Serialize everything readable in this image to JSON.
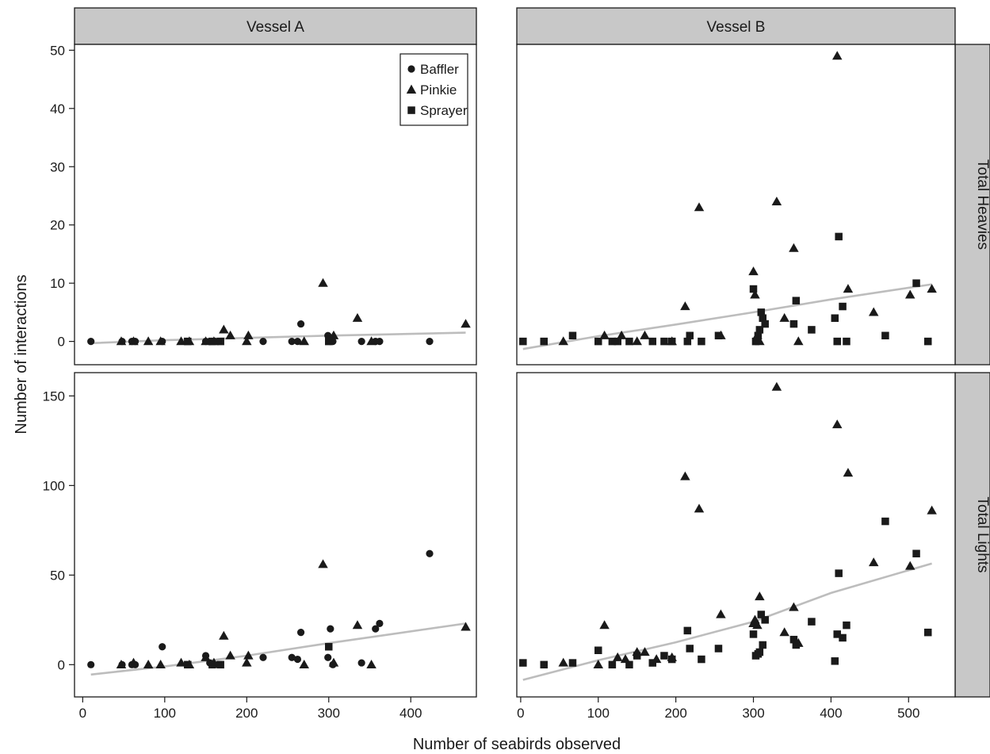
{
  "chart_data": {
    "type": "scatter",
    "xlabel": "Number of seabirds observed",
    "ylabel": "Number of interactions",
    "columns": [
      "Vessel A",
      "Vessel B"
    ],
    "rows": [
      "Total Heavies",
      "Total Lights"
    ],
    "legend": {
      "placement": "top-right of first panel",
      "entries": [
        {
          "name": "Baffler",
          "marker": "circle"
        },
        {
          "name": "Pinkie",
          "marker": "triangle"
        },
        {
          "name": "Sprayer",
          "marker": "square"
        }
      ]
    },
    "x_axes": [
      {
        "xlim": [
          -10,
          480
        ],
        "ticks": [
          0,
          100,
          200,
          300,
          400
        ]
      },
      {
        "xlim": [
          -5,
          560
        ],
        "ticks": [
          0,
          100,
          200,
          300,
          400,
          500
        ]
      }
    ],
    "y_axes": [
      {
        "ylim": [
          -4,
          51
        ],
        "ticks": [
          0,
          10,
          20,
          30,
          40,
          50
        ]
      },
      {
        "ylim": [
          -18,
          163
        ],
        "ticks": [
          0,
          50,
          100,
          150
        ]
      }
    ],
    "panels": [
      {
        "column": "Vessel A",
        "row": "Total Heavies",
        "trend": [
          [
            10,
            -0.3
          ],
          [
            100,
            0.2
          ],
          [
            200,
            0.6
          ],
          [
            300,
            1.0
          ],
          [
            467,
            1.5
          ]
        ],
        "series": [
          {
            "name": "Baffler",
            "x": [
              10,
              48,
              60,
              64,
              97,
              150,
              155,
              165,
              220,
              255,
              262,
              266,
              299,
              302,
              305,
              340,
              357,
              362,
              423
            ],
            "y": [
              0,
              0,
              0,
              0,
              0,
              0,
              0,
              0,
              0,
              0,
              0,
              3,
              1,
              0,
              0,
              0,
              0,
              0,
              0
            ]
          },
          {
            "name": "Pinkie",
            "x": [
              47,
              62,
              80,
              95,
              120,
              130,
              150,
              160,
              172,
              180,
              200,
              202,
              270,
              293,
              306,
              335,
              352,
              467
            ],
            "y": [
              0,
              0,
              0,
              0,
              0,
              0,
              0,
              0,
              2,
              1,
              0,
              1,
              0,
              10,
              1,
              4,
              0,
              3
            ]
          },
          {
            "name": "Sprayer",
            "x": [
              128,
              158,
              168,
              300
            ],
            "y": [
              0,
              0,
              0,
              0
            ]
          }
        ]
      },
      {
        "column": "Vessel B",
        "row": "Total Heavies",
        "trend": [
          [
            3,
            -1.3
          ],
          [
            100,
            0.9
          ],
          [
            200,
            2.9
          ],
          [
            300,
            5.0
          ],
          [
            400,
            7.2
          ],
          [
            530,
            9.8
          ]
        ],
        "series": [
          {
            "name": "Pinkie",
            "x": [
              55,
              108,
              130,
              150,
              160,
              195,
              212,
              230,
              258,
              300,
              302,
              305,
              308,
              330,
              340,
              352,
              358,
              408,
              422,
              455,
              502,
              530
            ],
            "y": [
              0,
              1,
              1,
              0,
              1,
              0,
              6,
              23,
              1,
              12,
              8,
              1,
              0,
              24,
              4,
              16,
              0,
              49,
              9,
              5,
              8,
              9
            ]
          },
          {
            "name": "Sprayer",
            "x": [
              3,
              30,
              67,
              100,
              118,
              125,
              140,
              170,
              185,
              195,
              215,
              218,
              233,
              255,
              300,
              303,
              306,
              308,
              310,
              312,
              315,
              352,
              355,
              375,
              405,
              408,
              410,
              415,
              420,
              470,
              510,
              525
            ],
            "y": [
              0,
              0,
              1,
              0,
              0,
              0,
              0,
              0,
              0,
              0,
              0,
              1,
              0,
              1,
              9,
              0,
              1,
              2,
              5,
              4,
              3,
              3,
              7,
              2,
              4,
              0,
              18,
              6,
              0,
              1,
              10,
              0
            ]
          }
        ]
      },
      {
        "column": "Vessel A",
        "row": "Total Lights",
        "trend": [
          [
            10,
            -5.5
          ],
          [
            100,
            -1.0
          ],
          [
            200,
            5.0
          ],
          [
            300,
            12.0
          ],
          [
            467,
            23.0
          ]
        ],
        "series": [
          {
            "name": "Baffler",
            "x": [
              10,
              48,
              60,
              64,
              97,
              150,
              155,
              165,
              220,
              255,
              262,
              266,
              299,
              302,
              305,
              340,
              357,
              362,
              423
            ],
            "y": [
              0,
              0,
              0,
              0,
              10,
              5,
              1,
              0,
              4,
              4,
              3,
              18,
              4,
              20,
              0,
              1,
              20,
              23,
              62
            ]
          },
          {
            "name": "Pinkie",
            "x": [
              47,
              62,
              80,
              95,
              120,
              130,
              150,
              160,
              172,
              180,
              200,
              202,
              270,
              293,
              306,
              335,
              352,
              467
            ],
            "y": [
              0,
              1,
              0,
              0,
              1,
              0,
              4,
              1,
              16,
              5,
              1,
              5,
              0,
              56,
              1,
              22,
              0,
              21
            ]
          },
          {
            "name": "Sprayer",
            "x": [
              128,
              158,
              168,
              300
            ],
            "y": [
              0,
              0,
              0,
              10
            ]
          }
        ]
      },
      {
        "column": "Vessel B",
        "row": "Total Lights",
        "trend": [
          [
            3,
            -8.5
          ],
          [
            100,
            2.5
          ],
          [
            200,
            12.5
          ],
          [
            300,
            24.0
          ],
          [
            400,
            40.0
          ],
          [
            530,
            56.5
          ]
        ],
        "series": [
          {
            "name": "Pinkie",
            "x": [
              55,
              100,
              108,
              125,
              135,
              150,
              160,
              175,
              195,
              212,
              230,
              258,
              300,
              302,
              305,
              308,
              330,
              340,
              352,
              358,
              408,
              422,
              455,
              502,
              530
            ],
            "y": [
              1,
              0,
              22,
              4,
              3,
              7,
              7,
              3,
              4,
              105,
              87,
              28,
              23,
              25,
              22,
              38,
              155,
              18,
              32,
              12,
              134,
              107,
              57,
              55,
              86
            ]
          },
          {
            "name": "Sprayer",
            "x": [
              3,
              30,
              67,
              100,
              118,
              140,
              150,
              170,
              185,
              195,
              215,
              218,
              233,
              255,
              300,
              303,
              306,
              308,
              310,
              312,
              315,
              352,
              355,
              375,
              405,
              408,
              410,
              415,
              420,
              470,
              510,
              525
            ],
            "y": [
              1,
              0,
              1,
              8,
              0,
              0,
              5,
              1,
              5,
              3,
              19,
              9,
              3,
              9,
              17,
              5,
              6,
              7,
              28,
              11,
              25,
              14,
              11,
              24,
              2,
              17,
              51,
              15,
              22,
              80,
              62,
              18
            ]
          }
        ]
      }
    ]
  }
}
